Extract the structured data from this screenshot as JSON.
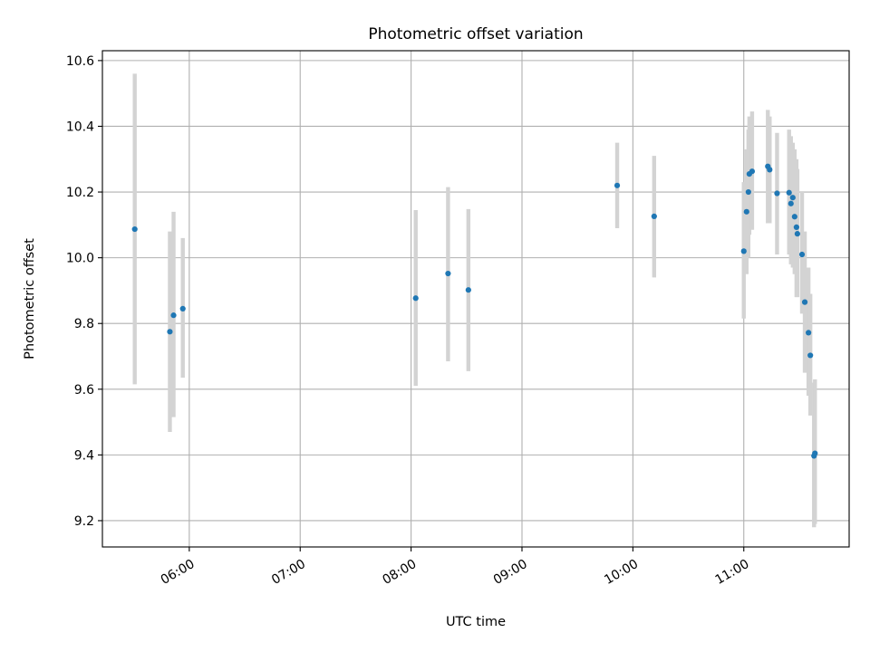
{
  "chart_data": {
    "type": "scatter",
    "title": "Photometric offset variation",
    "xlabel": "UTC time",
    "ylabel": "Photometric offset",
    "xlim": [
      "05:13",
      "11:57"
    ],
    "ylim": [
      9.12,
      10.63
    ],
    "grid": true,
    "x_ticks": [
      "06:00",
      "07:00",
      "08:00",
      "09:00",
      "10:00",
      "11:00"
    ],
    "y_ticks": [
      "9.2",
      "9.4",
      "9.6",
      "9.8",
      "10.0",
      "10.2",
      "10.4",
      "10.6"
    ],
    "y_tick_values": [
      9.2,
      9.4,
      9.6,
      9.8,
      10.0,
      10.2,
      10.4,
      10.6
    ],
    "colors": {
      "marker": "#1f77b4",
      "error_bar": "#d3d3d3",
      "grid": "#b0b0b0"
    },
    "points": [
      {
        "x": "05:30:30",
        "y": 10.087,
        "ylow": 9.615,
        "yhigh": 10.56
      },
      {
        "x": "05:49:30",
        "y": 9.775,
        "ylow": 9.47,
        "yhigh": 10.08
      },
      {
        "x": "05:51:30",
        "y": 9.825,
        "ylow": 9.515,
        "yhigh": 10.14
      },
      {
        "x": "05:56:30",
        "y": 9.845,
        "ylow": 9.635,
        "yhigh": 10.06
      },
      {
        "x": "08:02:30",
        "y": 9.877,
        "ylow": 9.61,
        "yhigh": 10.145
      },
      {
        "x": "08:20:00",
        "y": 9.952,
        "ylow": 9.685,
        "yhigh": 10.215
      },
      {
        "x": "08:31:00",
        "y": 9.902,
        "ylow": 9.655,
        "yhigh": 10.148
      },
      {
        "x": "09:51:30",
        "y": 10.22,
        "ylow": 10.09,
        "yhigh": 10.35
      },
      {
        "x": "10:11:30",
        "y": 10.126,
        "ylow": 9.94,
        "yhigh": 10.31
      },
      {
        "x": "11:00:00",
        "y": 10.02,
        "ylow": 9.815,
        "yhigh": 10.23
      },
      {
        "x": "11:01:30",
        "y": 10.14,
        "ylow": 9.95,
        "yhigh": 10.33
      },
      {
        "x": "11:02:30",
        "y": 10.2,
        "ylow": 10.0,
        "yhigh": 10.39
      },
      {
        "x": "11:03:00",
        "y": 10.255,
        "ylow": 10.07,
        "yhigh": 10.43
      },
      {
        "x": "11:04:30",
        "y": 10.263,
        "ylow": 10.085,
        "yhigh": 10.445
      },
      {
        "x": "11:13:00",
        "y": 10.278,
        "ylow": 10.105,
        "yhigh": 10.45
      },
      {
        "x": "11:14:00",
        "y": 10.268,
        "ylow": 10.105,
        "yhigh": 10.43
      },
      {
        "x": "11:18:00",
        "y": 10.196,
        "ylow": 10.01,
        "yhigh": 10.38
      },
      {
        "x": "11:24:30",
        "y": 10.198,
        "ylow": 10.01,
        "yhigh": 10.39
      },
      {
        "x": "11:25:30",
        "y": 10.165,
        "ylow": 9.98,
        "yhigh": 10.37
      },
      {
        "x": "11:26:30",
        "y": 10.183,
        "ylow": 9.97,
        "yhigh": 10.35
      },
      {
        "x": "11:27:30",
        "y": 10.125,
        "ylow": 9.95,
        "yhigh": 10.33
      },
      {
        "x": "11:28:30",
        "y": 10.093,
        "ylow": 9.88,
        "yhigh": 10.3
      },
      {
        "x": "11:29:00",
        "y": 10.073,
        "ylow": 9.88,
        "yhigh": 10.27
      },
      {
        "x": "11:31:30",
        "y": 10.01,
        "ylow": 9.83,
        "yhigh": 10.2
      },
      {
        "x": "11:33:00",
        "y": 9.865,
        "ylow": 9.65,
        "yhigh": 10.08
      },
      {
        "x": "11:35:00",
        "y": 9.772,
        "ylow": 9.58,
        "yhigh": 9.97
      },
      {
        "x": "11:36:00",
        "y": 9.703,
        "ylow": 9.52,
        "yhigh": 9.89
      },
      {
        "x": "11:38:00",
        "y": 9.397,
        "ylow": 9.18,
        "yhigh": 9.62
      },
      {
        "x": "11:38:30",
        "y": 9.405,
        "ylow": 9.19,
        "yhigh": 9.63
      }
    ]
  }
}
